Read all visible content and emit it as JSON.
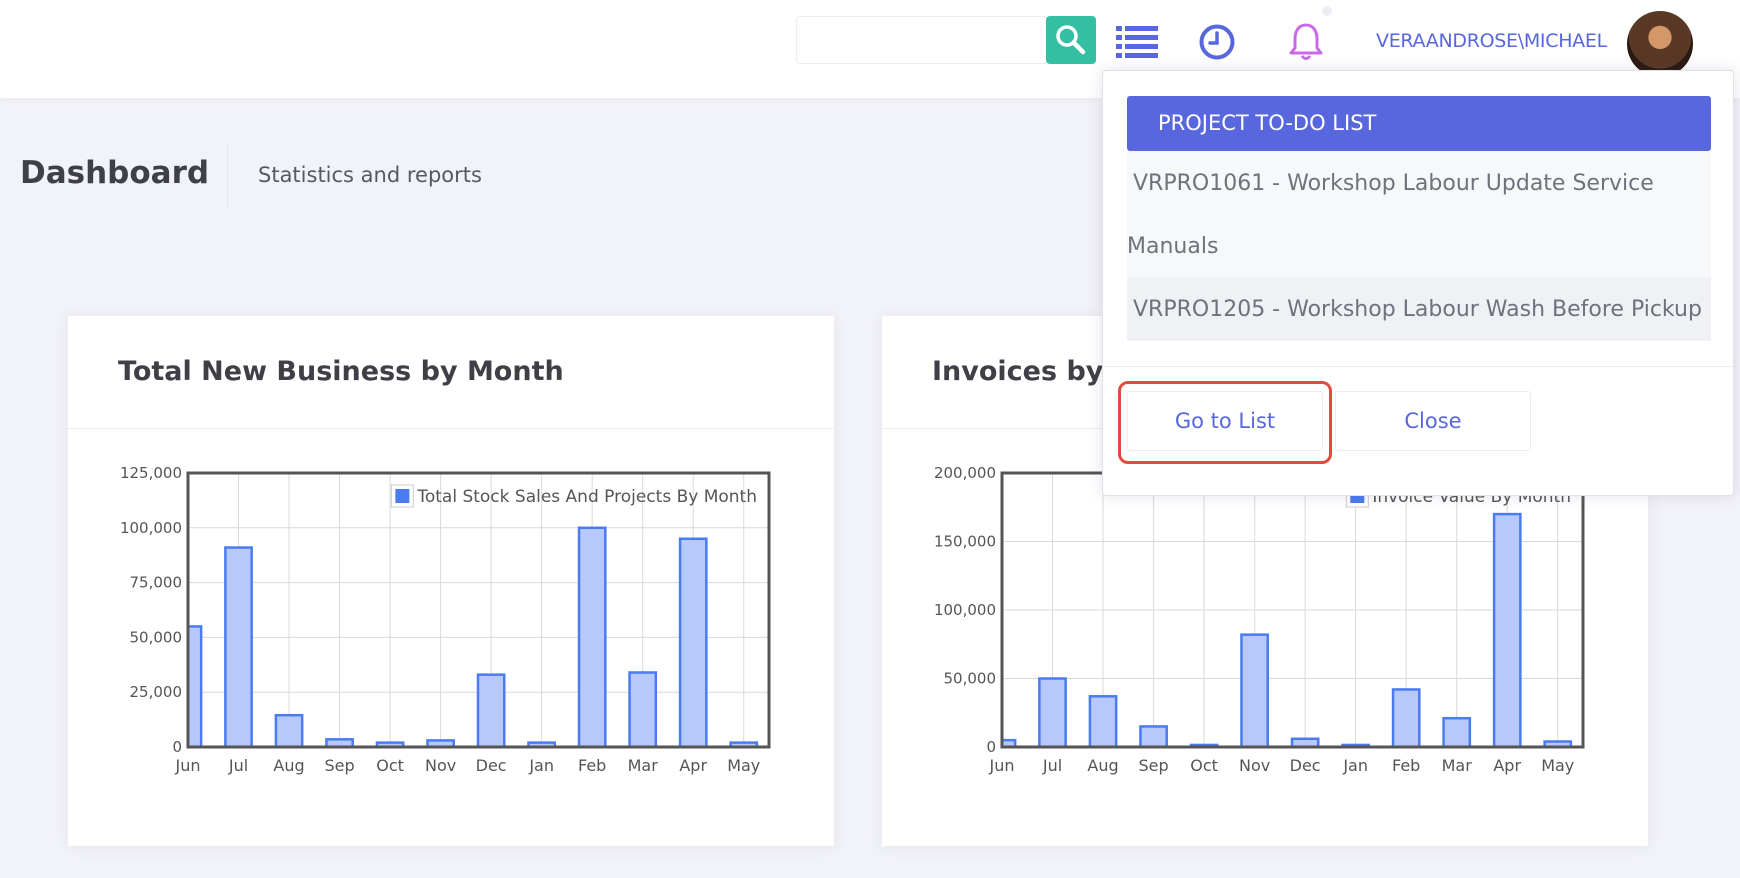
{
  "header": {
    "search_placeholder": "",
    "user_name": "VERAANDROSE\\MICHAEL",
    "icons": [
      "search-icon",
      "list-icon",
      "clock-icon",
      "bell-icon"
    ]
  },
  "subheader": {
    "title": "Dashboard",
    "description": "Statistics and reports"
  },
  "dropdown": {
    "header": "PROJECT TO-DO LIST",
    "items": [
      {
        "line1": "VRPRO1061 - Workshop Labour Update Service",
        "line2": "Manuals"
      },
      {
        "line1": "VRPRO1205 - Workshop Labour Wash Before Pickup"
      }
    ],
    "go_to_list_label": "Go to List",
    "close_label": "Close"
  },
  "colors": {
    "accent": "#5867dd",
    "search_button": "#34bfa3",
    "bar_fill": "#b7c9fb",
    "bar_stroke": "#4a7bf0",
    "bell": "#c86ae8",
    "highlight": "#e04a3f"
  },
  "portlets": [
    {
      "title": "Total New Business by Month"
    },
    {
      "title": "Invoices by Month"
    }
  ],
  "chart_data": [
    {
      "type": "bar",
      "categories": [
        "Jun",
        "Jul",
        "Aug",
        "Sep",
        "Oct",
        "Nov",
        "Dec",
        "Jan",
        "Feb",
        "Mar",
        "Apr",
        "May"
      ],
      "series": [
        {
          "name": "Total Stock Sales And Projects By Month",
          "values": [
            55000,
            91000,
            14500,
            3500,
            2000,
            3000,
            33000,
            2000,
            100000,
            34000,
            95000,
            2000
          ]
        }
      ],
      "yticks": [
        "0",
        "25,000",
        "50,000",
        "75,000",
        "100,000",
        "125,000"
      ],
      "ylim": [
        0,
        125000
      ],
      "grid": true,
      "legend": "top-right"
    },
    {
      "type": "bar",
      "categories": [
        "Jun",
        "Jul",
        "Aug",
        "Sep",
        "Oct",
        "Nov",
        "Dec",
        "Jan",
        "Feb",
        "Mar",
        "Apr",
        "May"
      ],
      "series": [
        {
          "name": "Invoice Value By Month",
          "values": [
            5000,
            50000,
            37000,
            15000,
            1500,
            82000,
            6000,
            1500,
            42000,
            21000,
            170000,
            4000
          ]
        }
      ],
      "yticks": [
        "0",
        "50,000",
        "100,000",
        "150,000",
        "200,000"
      ],
      "ylim": [
        0,
        200000
      ],
      "grid": true,
      "legend": "top-right"
    }
  ]
}
